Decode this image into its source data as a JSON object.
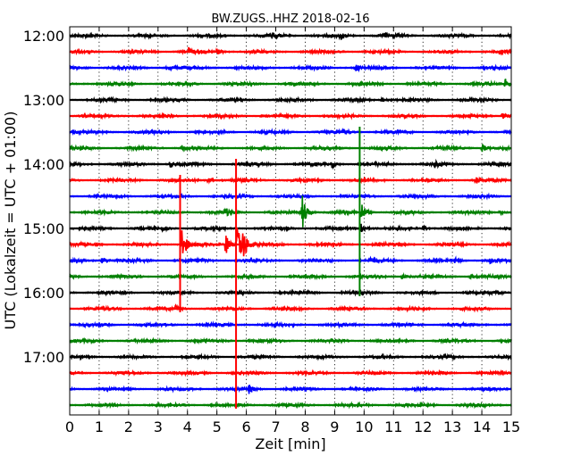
{
  "chart_data": {
    "type": "line",
    "title": "BW.ZUGS..HHZ 2018-02-16",
    "xlabel": "Zeit  [min]",
    "ylabel": "UTC (Lokalzeit = UTC + 01:00)",
    "xlim": [
      0,
      15
    ],
    "x_ticks": [
      "0",
      "1",
      "2",
      "3",
      "4",
      "5",
      "6",
      "7",
      "8",
      "9",
      "10",
      "11",
      "12",
      "13",
      "14",
      "15"
    ],
    "y_ticks": [
      "12:00",
      "13:00",
      "14:00",
      "15:00",
      "16:00",
      "17:00"
    ],
    "grid": "dotted",
    "colors": {
      "cycle": [
        "#000000",
        "#ff0000",
        "#0000ff",
        "#008000"
      ]
    },
    "series": [
      {
        "start": "12:00",
        "color": "#000000",
        "events": [
          {
            "x": 6.9,
            "amp": 0.5
          },
          {
            "x": 9.2,
            "amp": 0.45
          },
          {
            "x": 10.7,
            "amp": 0.35
          }
        ]
      },
      {
        "start": "12:15",
        "color": "#ff0000",
        "events": [
          {
            "x": 4.0,
            "amp": 0.55
          },
          {
            "x": 5.0,
            "amp": 0.35
          },
          {
            "x": 14.6,
            "amp": 0.45
          }
        ]
      },
      {
        "start": "12:30",
        "color": "#0000ff",
        "events": [
          {
            "x": 3.3,
            "amp": 0.3
          },
          {
            "x": 9.7,
            "amp": 0.45
          }
        ]
      },
      {
        "start": "12:45",
        "color": "#008000",
        "events": [
          {
            "x": 14.8,
            "amp": 0.55
          }
        ]
      },
      {
        "start": "13:00",
        "color": "#000000",
        "events": [
          {
            "x": 10.6,
            "amp": 0.35
          }
        ]
      },
      {
        "start": "13:15",
        "color": "#ff0000",
        "events": [
          {
            "x": 14.7,
            "amp": 0.4
          }
        ]
      },
      {
        "start": "13:30",
        "color": "#0000ff",
        "events": [
          {
            "x": 9.3,
            "amp": 0.3
          }
        ]
      },
      {
        "start": "13:45",
        "color": "#008000",
        "events": [
          {
            "x": 3.8,
            "amp": 0.3
          },
          {
            "x": 14.0,
            "amp": 0.6
          }
        ]
      },
      {
        "start": "14:00",
        "color": "#000000",
        "events": [
          {
            "x": 3.4,
            "amp": 0.4
          },
          {
            "x": 8.9,
            "amp": 0.4
          },
          {
            "x": 12.4,
            "amp": 0.3
          }
        ]
      },
      {
        "start": "14:15",
        "color": "#ff0000",
        "events": [
          {
            "x": 4.7,
            "amp": 0.35
          },
          {
            "x": 13.8,
            "amp": 0.35
          }
        ]
      },
      {
        "start": "14:30",
        "color": "#0000ff",
        "events": []
      },
      {
        "start": "14:45",
        "color": "#008000",
        "events": [
          {
            "x": 5.3,
            "amp": 0.4
          },
          {
            "x": 7.9,
            "amp": 2.2
          },
          {
            "x": 9.9,
            "amp": 1.2
          },
          {
            "x": 14.6,
            "amp": 0.3
          }
        ]
      },
      {
        "start": "15:00",
        "color": "#000000",
        "events": [
          {
            "x": 3.1,
            "amp": 0.3
          },
          {
            "x": 9.9,
            "amp": 0.8
          },
          {
            "x": 12.0,
            "amp": 0.3
          }
        ]
      },
      {
        "start": "15:15",
        "color": "#ff0000",
        "events": [
          {
            "x": 3.8,
            "amp": 2.5
          },
          {
            "x": 5.3,
            "amp": 1.4
          },
          {
            "x": 5.7,
            "amp": 3.2
          },
          {
            "x": 5.9,
            "amp": 1.6
          }
        ]
      },
      {
        "start": "15:30",
        "color": "#0000ff",
        "events": [
          {
            "x": 1.1,
            "amp": 0.5
          },
          {
            "x": 10.2,
            "amp": 0.3
          },
          {
            "x": 13.1,
            "amp": 0.3
          },
          {
            "x": 14.3,
            "amp": 0.4
          }
        ]
      },
      {
        "start": "15:45",
        "color": "#008000",
        "events": [
          {
            "x": 11.3,
            "amp": 0.3
          },
          {
            "x": 13.6,
            "amp": 0.3
          }
        ]
      },
      {
        "start": "16:00",
        "color": "#000000",
        "events": [
          {
            "x": 14.5,
            "amp": 0.4
          }
        ]
      },
      {
        "start": "16:15",
        "color": "#ff0000",
        "events": [
          {
            "x": 3.6,
            "amp": 0.5
          }
        ]
      },
      {
        "start": "16:30",
        "color": "#0000ff",
        "events": []
      },
      {
        "start": "16:45",
        "color": "#008000",
        "events": []
      },
      {
        "start": "17:00",
        "color": "#000000",
        "events": []
      },
      {
        "start": "17:15",
        "color": "#ff0000",
        "events": []
      },
      {
        "start": "17:30",
        "color": "#0000ff",
        "events": [
          {
            "x": 6.1,
            "amp": 0.55
          }
        ]
      },
      {
        "start": "17:45",
        "color": "#008000",
        "events": []
      }
    ],
    "long_spikes": [
      {
        "x": 5.65,
        "from": "14:00",
        "to": "17:45",
        "color": "#ff0000"
      },
      {
        "x": 3.75,
        "from": "14:15",
        "to": "16:15",
        "color": "#ff0000"
      },
      {
        "x": 9.85,
        "from": "13:30",
        "to": "16:00",
        "color": "#008000"
      }
    ]
  }
}
